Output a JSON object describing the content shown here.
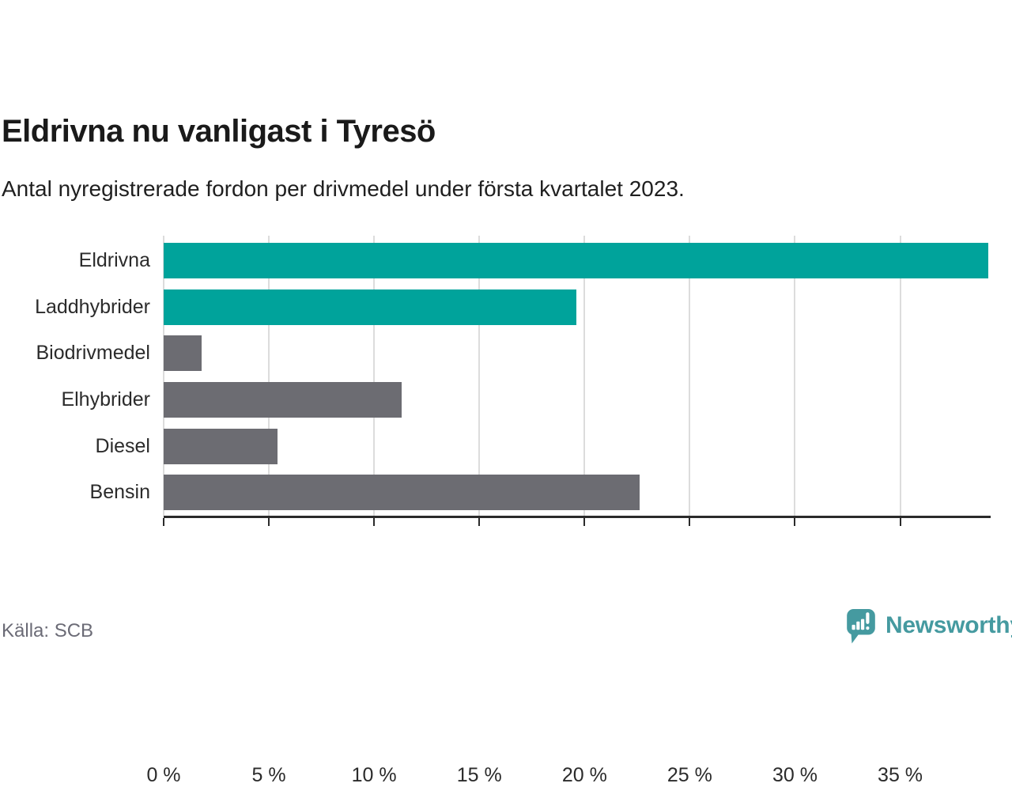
{
  "header": {
    "title": "Eldrivna nu vanligast i Tyresö",
    "subtitle": "Antal nyregistrerade fordon per drivmedel under första kvartalet 2023."
  },
  "chart_data": {
    "type": "bar",
    "orientation": "horizontal",
    "title": "Eldrivna nu vanligast i Tyresö",
    "categories": [
      "Eldrivna",
      "Laddhybrider",
      "Biodrivmedel",
      "Elhybrider",
      "Diesel",
      "Bensin"
    ],
    "values": [
      39.2,
      19.6,
      1.8,
      11.3,
      5.4,
      22.6
    ],
    "unit": "%",
    "bar_colors": [
      "#00a39b",
      "#00a39b",
      "#6c6c72",
      "#6c6c72",
      "#6c6c72",
      "#6c6c72"
    ],
    "highlight_color": "#00a39b",
    "default_color": "#6c6c72",
    "x_ticks": [
      0,
      5,
      10,
      15,
      20,
      25,
      30,
      35
    ],
    "x_tick_labels": [
      "0 %",
      "5 %",
      "10 %",
      "15 %",
      "20 %",
      "25 %",
      "30 %",
      "35 %"
    ],
    "xlim": [
      0,
      39.3
    ],
    "grid": true,
    "gridline_color": "#dcdcdc",
    "axis_color": "#2b2b2b",
    "xlabel": "",
    "ylabel": "",
    "legend": null
  },
  "footer": {
    "source": "Källa: SCB",
    "brand": "Newsworthy",
    "brand_color": "#459aa0",
    "brand_icon": "speech-bubble-bar-chart-icon"
  }
}
